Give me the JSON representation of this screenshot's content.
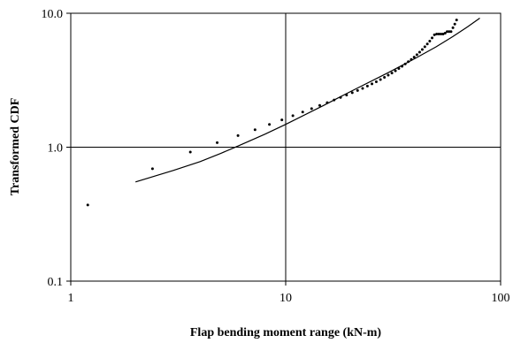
{
  "chart_data": {
    "type": "scatter",
    "title": "",
    "xlabel": "Flap bending moment range (kN-m)",
    "ylabel": "Transformed CDF",
    "xscale": "log",
    "yscale": "log",
    "xlim": [
      1,
      100
    ],
    "ylim": [
      0.1,
      10
    ],
    "grid": "major gridlines on both axes",
    "legend": "none",
    "x_ticks": [
      1,
      10,
      100
    ],
    "x_tick_labels": [
      "1",
      "10",
      "100"
    ],
    "y_ticks": [
      0.1,
      1,
      10
    ],
    "y_tick_labels": [
      "0.1",
      "1.0",
      "10.0"
    ],
    "series": [
      {
        "kind": "points",
        "color": "#000000",
        "x": [
          1.2,
          2.4,
          3.6,
          4.8,
          6.0,
          7.2,
          8.4,
          9.6,
          10.8,
          12.0,
          13.2,
          14.4,
          15.6,
          16.8,
          18.0,
          19.2,
          20.4,
          21.6,
          22.8,
          24.0,
          25.2,
          26.4,
          27.6,
          28.8,
          30.0,
          31.2,
          32.4,
          33.6,
          34.8,
          36.0,
          37.2,
          38.4,
          39.6,
          40.8,
          42.0,
          43.2,
          44.4,
          45.6,
          46.8,
          48.0,
          49.2,
          50.4,
          51.6,
          52.8,
          54.0,
          55.2,
          56.4,
          57.6,
          58.8,
          60.0,
          61.2,
          62.4
        ],
        "y": [
          0.37,
          0.69,
          0.92,
          1.08,
          1.22,
          1.35,
          1.48,
          1.6,
          1.72,
          1.83,
          1.94,
          2.05,
          2.15,
          2.25,
          2.35,
          2.45,
          2.55,
          2.65,
          2.75,
          2.86,
          2.97,
          3.08,
          3.2,
          3.32,
          3.45,
          3.58,
          3.72,
          3.87,
          4.02,
          4.18,
          4.35,
          4.52,
          4.7,
          4.9,
          5.12,
          5.36,
          5.62,
          5.9,
          6.2,
          6.55,
          6.9,
          7.0,
          7.0,
          7.0,
          7.0,
          7.1,
          7.3,
          7.3,
          7.3,
          7.8,
          8.3,
          8.9
        ]
      },
      {
        "kind": "line",
        "color": "#000000",
        "x": [
          2,
          3,
          4,
          5,
          6,
          8,
          10,
          15,
          20,
          30,
          40,
          50,
          60,
          70,
          80
        ],
        "y": [
          0.55,
          0.67,
          0.78,
          0.9,
          1.02,
          1.25,
          1.48,
          2.05,
          2.6,
          3.6,
          4.6,
          5.6,
          6.7,
          7.9,
          9.2
        ]
      }
    ]
  }
}
